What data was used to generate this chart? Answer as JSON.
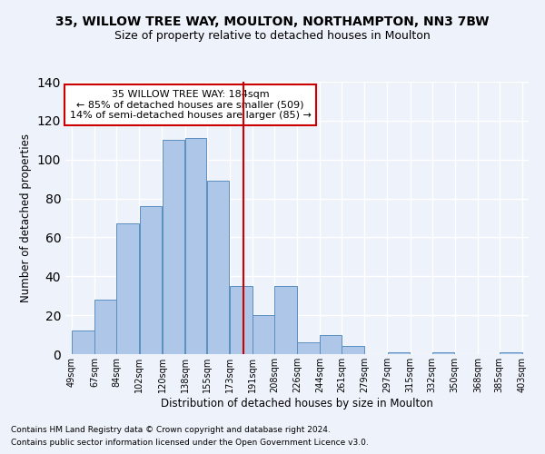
{
  "title_line1": "35, WILLOW TREE WAY, MOULTON, NORTHAMPTON, NN3 7BW",
  "title_line2": "Size of property relative to detached houses in Moulton",
  "xlabel": "Distribution of detached houses by size in Moulton",
  "ylabel": "Number of detached properties",
  "footnote1": "Contains HM Land Registry data © Crown copyright and database right 2024.",
  "footnote2": "Contains public sector information licensed under the Open Government Licence v3.0.",
  "annotation_line1": "35 WILLOW TREE WAY: 184sqm",
  "annotation_line2": "← 85% of detached houses are smaller (509)",
  "annotation_line3": "14% of semi-detached houses are larger (85) →",
  "property_size": 184,
  "bar_edges": [
    49,
    67,
    84,
    102,
    120,
    138,
    155,
    173,
    191,
    208,
    226,
    244,
    261,
    279,
    297,
    315,
    332,
    350,
    368,
    385,
    403
  ],
  "bar_heights": [
    12,
    28,
    67,
    76,
    110,
    111,
    89,
    35,
    20,
    35,
    6,
    10,
    4,
    0,
    1,
    0,
    1,
    0,
    0,
    1
  ],
  "bar_color": "#aec6e8",
  "bar_edgecolor": "#5a8fc0",
  "vline_color": "#cc0000",
  "vline_x": 184,
  "annotation_box_edgecolor": "#cc0000",
  "annotation_box_facecolor": "#ffffff",
  "background_color": "#eef2fb",
  "grid_color": "#ffffff",
  "ylim": [
    0,
    140
  ],
  "yticks": [
    0,
    20,
    40,
    60,
    80,
    100,
    120,
    140
  ]
}
